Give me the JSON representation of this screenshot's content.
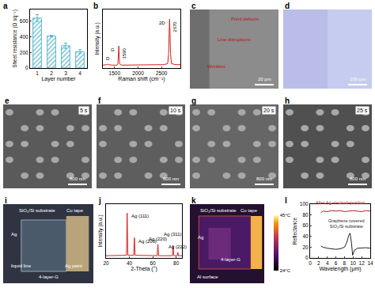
{
  "chart_data": [
    {
      "panel": "a",
      "type": "bar",
      "categories": [
        "1",
        "2",
        "3",
        "4"
      ],
      "values": [
        640,
        410,
        285,
        210
      ],
      "errors": [
        45,
        10,
        35,
        25
      ],
      "color": "#5fb8cc",
      "x_label": "Layer number",
      "y_label": "Sheet resistance (Ω sq⁻¹)",
      "ylim": [
        0,
        750
      ],
      "yticks": [
        0,
        200,
        400,
        600
      ]
    },
    {
      "panel": "b",
      "type": "line",
      "color": "#d62020",
      "x_label": "Raman shift (cm⁻¹)",
      "y_label": "Intensity (a.u.)",
      "tick_labels": "x",
      "x": [
        1250,
        1300,
        1340,
        1355,
        1370,
        1450,
        1540,
        1570,
        1580,
        1590,
        1600,
        1610,
        1650,
        1800,
        2000,
        2200,
        2400,
        2550,
        2630,
        2650,
        2660,
        2670,
        2680,
        2690,
        2710,
        2800,
        2900
      ],
      "values": [
        0.06,
        0.06,
        0.07,
        0.08,
        0.07,
        0.06,
        0.06,
        0.08,
        0.2,
        0.45,
        0.2,
        0.08,
        0.06,
        0.06,
        0.06,
        0.06,
        0.06,
        0.07,
        0.09,
        0.3,
        0.7,
        1.0,
        0.7,
        0.3,
        0.09,
        0.07,
        0.07
      ],
      "xlim": [
        1250,
        2900
      ],
      "xticks": [
        1500,
        2000,
        2500
      ],
      "ylim": [
        0,
        1.2
      ],
      "annotations": [
        {
          "text": "D",
          "x": 1355,
          "y": 0.08
        },
        {
          "text": "G",
          "x": 1590,
          "y": 0.45
        },
        {
          "text": "1590",
          "x": 1590,
          "y": 0.45
        },
        {
          "text": "2D",
          "x": 2670,
          "y": 1.0
        },
        {
          "text": "2670",
          "x": 2670,
          "y": 1.0
        }
      ]
    },
    {
      "panel": "j",
      "type": "line",
      "color": "#d62020",
      "x_label": "2-Theta (°)",
      "y_label": "Intensity (a.u.)",
      "tick_labels": "x",
      "x": [
        20,
        30,
        37.5,
        38.1,
        38.7,
        43.7,
        44.3,
        44.9,
        55,
        63.8,
        64.4,
        65,
        76.8,
        77.4,
        78,
        81,
        81.5,
        82,
        85
      ],
      "values": [
        0.05,
        0.05,
        0.06,
        1.0,
        0.06,
        0.06,
        0.45,
        0.06,
        0.05,
        0.05,
        0.3,
        0.05,
        0.05,
        0.28,
        0.05,
        0.05,
        0.12,
        0.05,
        0.05
      ],
      "xlim": [
        20,
        85
      ],
      "xticks": [
        20,
        40,
        60,
        80
      ],
      "ylim": [
        0,
        1.2
      ],
      "annotations": [
        {
          "text": "Ag (111)",
          "x": 38.1,
          "y": 1.0
        },
        {
          "text": "Ag (200)",
          "x": 44.3,
          "y": 0.45
        },
        {
          "text": "Ag (220)",
          "x": 64.4,
          "y": 0.3
        },
        {
          "text": "Ag (311)",
          "x": 77.4,
          "y": 0.28
        },
        {
          "text": "Ag (222)",
          "x": 81.5,
          "y": 0.12
        }
      ]
    },
    {
      "panel": "l",
      "type": "line",
      "x_label": "Wavelength (μm)",
      "y_label": "Reflectance",
      "series": [
        {
          "name": "After Ag electrodeposition",
          "color": "#b02020",
          "x": [
            2.5,
            3,
            4,
            5,
            6,
            7,
            8,
            9,
            10,
            11,
            12,
            13,
            14
          ],
          "values": [
            84,
            87,
            86,
            88,
            87,
            88,
            86,
            87,
            88,
            87,
            86,
            88,
            87
          ]
        },
        {
          "name": "Graphene covered\nSiO₂/Si substrate",
          "color": "#222222",
          "x": [
            2.5,
            3,
            4,
            5,
            6,
            7,
            8,
            8.5,
            9,
            9.3,
            9.6,
            9.9,
            10.3,
            11,
            12,
            13,
            14
          ],
          "values": [
            22,
            20,
            18,
            17,
            16,
            17,
            20,
            28,
            42,
            46,
            30,
            5,
            14,
            18,
            19,
            19,
            18
          ]
        }
      ],
      "xlim": [
        0,
        14
      ],
      "xticks": [
        0,
        2,
        4,
        6,
        8,
        10,
        12,
        14
      ],
      "ylim": [
        0,
        100
      ],
      "yticks": [
        0,
        20,
        40,
        60,
        80,
        100
      ]
    }
  ],
  "images": [
    {
      "panel": "c",
      "texts": [
        "Point defects",
        "Line disruptions",
        "Wrinkles"
      ],
      "scale_bar": "20 μm"
    },
    {
      "panel": "d",
      "texts": [],
      "scale_bar": "100 μm"
    },
    {
      "panel": "e",
      "time": "5 s",
      "scale_bar": "800 nm"
    },
    {
      "panel": "f",
      "time": "10 s",
      "scale_bar": "800 nm"
    },
    {
      "panel": "g",
      "time": "20 s",
      "scale_bar": "800 nm"
    },
    {
      "panel": "h",
      "time": "25 s",
      "scale_bar": "800 nm"
    },
    {
      "panel": "i",
      "texts": [
        "SiO₂/Si substrate",
        "Cu tape",
        "Ag",
        "liquid line",
        "Ag paint",
        "4-layer-G"
      ]
    },
    {
      "panel": "k",
      "texts": [
        "SiO₂/Si substrate",
        "Cu tape",
        "Ag",
        "4-layer-G",
        "Al surface"
      ],
      "colorbar": {
        "range": [
          24,
          45
        ],
        "ticks": [
          {
            "value": 45,
            "label": "45°C"
          },
          {
            "value": 24,
            "label": "24°C"
          }
        ]
      }
    }
  ]
}
